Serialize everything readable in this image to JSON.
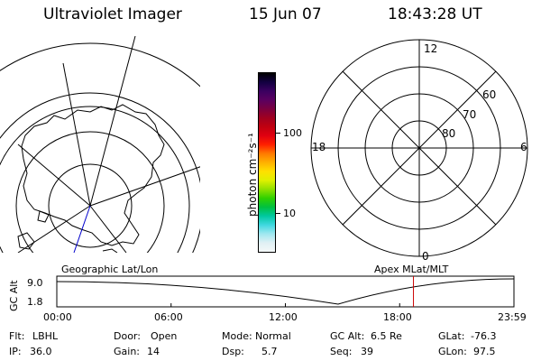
{
  "header": {
    "instrument": "Ultraviolet Imager",
    "date": "15 Jun 07",
    "time": "18:43:28 UT"
  },
  "left_map": {
    "label": "Geographic Lat/Lon"
  },
  "colorbar": {
    "unit_label": "photon cm⁻²s⁻¹",
    "ticks": [
      "100",
      "10"
    ],
    "colors": [
      "#000000",
      "#120040",
      "#3a0060",
      "#5a0060",
      "#7a0040",
      "#a00020",
      "#c00010",
      "#e00010",
      "#ff2000",
      "#ff7a00",
      "#ffb000",
      "#ffe000",
      "#e0f000",
      "#90e000",
      "#30d000",
      "#00c040",
      "#00c8a0",
      "#40d8e0",
      "#a0e8f0",
      "#e0f0f4",
      "#f4f8f8"
    ]
  },
  "right_polar": {
    "label": "Apex  MLat/MLT",
    "mlt_labels": {
      "top": "12",
      "bottom": "0",
      "left": "18",
      "right": "6"
    },
    "lat_labels": [
      "60",
      "70",
      "80"
    ]
  },
  "timeline": {
    "ylabel": "GC Alt",
    "y_ticks": [
      "9.0",
      "1.8"
    ],
    "x_ticks": [
      "00:00",
      "06:00",
      "12:00",
      "18:00",
      "23:59"
    ],
    "current_time_hours": 18.724,
    "marker_color": "#cc0000"
  },
  "info": {
    "row1": [
      {
        "label": "Flt:",
        "value": "LBHL"
      },
      {
        "label": "Door:",
        "value": "Open"
      },
      {
        "label": "Mode:",
        "value": "Normal"
      },
      {
        "label": "GC Alt:",
        "value": "6.5 Re"
      },
      {
        "label": "GLat:",
        "value": "-76.3"
      }
    ],
    "row2": [
      {
        "label": "IP:",
        "value": "36.0"
      },
      {
        "label": "Gain:",
        "value": "14"
      },
      {
        "label": "Dsp:",
        "value": "5.7"
      },
      {
        "label": "Seq:",
        "value": "39"
      },
      {
        "label": "GLon:",
        "value": "97.5"
      }
    ]
  }
}
